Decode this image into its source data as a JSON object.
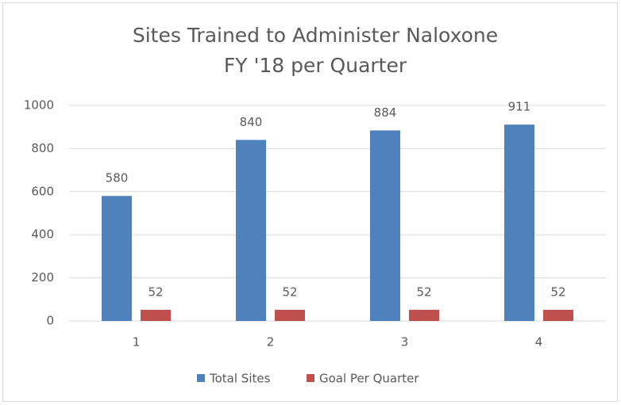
{
  "chart_data": {
    "type": "bar",
    "title": [
      "Sites Trained to Administer Naloxone",
      "FY '18 per Quarter"
    ],
    "categories": [
      "1",
      "2",
      "3",
      "4"
    ],
    "series": [
      {
        "name": "Total Sites",
        "color": "#4f81bd",
        "values": [
          580,
          840,
          884,
          911
        ]
      },
      {
        "name": "Goal Per Quarter",
        "color": "#c0504d",
        "values": [
          52,
          52,
          52,
          52
        ]
      }
    ],
    "ylim": [
      0,
      1000
    ],
    "yticks": [
      0,
      200,
      400,
      600,
      800,
      1000
    ],
    "grid": true,
    "legend": "bottom"
  }
}
